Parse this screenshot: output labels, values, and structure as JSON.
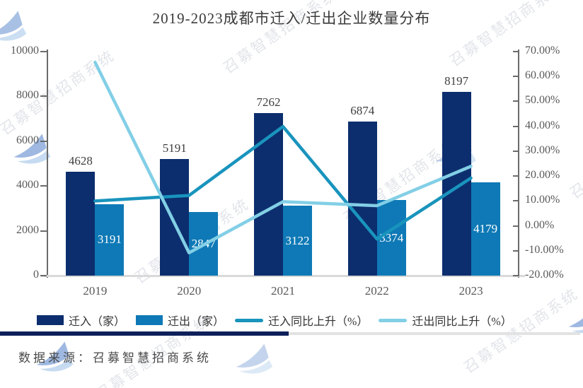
{
  "title": "2019-2023成都市迁入/迁出企业数量分布",
  "source_note": "数据来源：召募智慧招商系统",
  "watermark_text": "召募智慧招商系统",
  "colors": {
    "bar_in": "#0c2e6e",
    "bar_out": "#0e79b6",
    "line_in": "#1994bd",
    "line_out": "#82cfe6",
    "axis": "#6b6b6b",
    "axis_bottom": "#d9d9d9",
    "divider_navy": "#0e2059",
    "watermark_blue": "#3f74c4"
  },
  "chart_data": {
    "type": "bar+line combo",
    "title": "2019-2023成都市迁入/迁出企业数量分布",
    "categories": [
      "2019",
      "2020",
      "2021",
      "2022",
      "2023"
    ],
    "bar_series": [
      {
        "name": "迁入（家）",
        "color": "#0c2e6e",
        "values": [
          4628,
          5191,
          7262,
          6874,
          8197
        ],
        "label_style": "dark-above"
      },
      {
        "name": "迁出（家）",
        "color": "#0e79b6",
        "values": [
          3191,
          2847,
          3122,
          3374,
          4179
        ],
        "label_style": "white-inside"
      }
    ],
    "line_series": [
      {
        "name": "迁入同比上升（%）",
        "color": "#1994bd",
        "values": [
          10.0,
          12.2,
          39.9,
          -5.3,
          19.2
        ]
      },
      {
        "name": "迁出同比上升（%）",
        "color": "#82cfe6",
        "values": [
          65.7,
          -10.8,
          9.7,
          8.1,
          23.9
        ]
      }
    ],
    "left_axis": {
      "min": 0,
      "max": 10000,
      "tick_labels": [
        "0",
        "2000",
        "4000",
        "6000",
        "8000",
        "10000"
      ]
    },
    "right_axis": {
      "min": -20,
      "max": 70,
      "tick_labels": [
        "-20.00%",
        "-10.00%",
        "0.00%",
        "10.00%",
        "20.00%",
        "30.00%",
        "40.00%",
        "50.00%",
        "60.00%",
        "70.00%"
      ]
    },
    "grid": "off",
    "legend_position": "bottom"
  }
}
